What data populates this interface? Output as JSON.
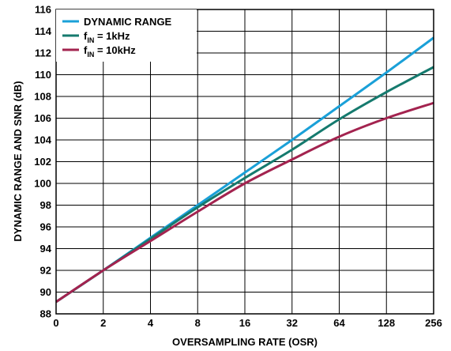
{
  "chart_data": {
    "type": "line",
    "xlabel": "OVERSAMPLING RATE (OSR)",
    "ylabel": "DYNAMIC RANGE AND SNR (dB)",
    "x_ticks": [
      "0",
      "2",
      "4",
      "8",
      "16",
      "32",
      "64",
      "128",
      "256"
    ],
    "ylim": [
      88,
      116
    ],
    "y_ticks": [
      "88",
      "90",
      "92",
      "94",
      "96",
      "98",
      "100",
      "102",
      "104",
      "106",
      "108",
      "110",
      "112",
      "114",
      "116"
    ],
    "grid": true,
    "legend_position": "top-left",
    "x_scale": "log2 (labeled ticks equally spaced)",
    "series": [
      {
        "name_main": "DYNAMIC RANGE",
        "name_sub": "",
        "name_tail": "",
        "color": "#1aa0d8",
        "points": [
          [
            "0",
            89.1
          ],
          [
            "2",
            92.0
          ],
          [
            "4",
            95.0
          ],
          [
            "8",
            98.0
          ],
          [
            "16",
            101.0
          ],
          [
            "32",
            104.0
          ],
          [
            "64",
            107.1
          ],
          [
            "128",
            110.2
          ],
          [
            "256",
            113.4
          ]
        ]
      },
      {
        "name_main": "f",
        "name_sub": "IN",
        "name_tail": " = 1kHz",
        "color": "#157a6e",
        "points": [
          [
            "0",
            89.1
          ],
          [
            "2",
            92.0
          ],
          [
            "4",
            94.9
          ],
          [
            "8",
            97.8
          ],
          [
            "16",
            100.5
          ],
          [
            "32",
            103.1
          ],
          [
            "64",
            105.9
          ],
          [
            "128",
            108.4
          ],
          [
            "256",
            110.7
          ]
        ]
      },
      {
        "name_main": "f",
        "name_sub": "IN",
        "name_tail": " = 10kHz",
        "color": "#a3234f",
        "points": [
          [
            "0",
            89.1
          ],
          [
            "2",
            92.0
          ],
          [
            "4",
            94.7
          ],
          [
            "8",
            97.4
          ],
          [
            "16",
            100.0
          ],
          [
            "32",
            102.2
          ],
          [
            "64",
            104.3
          ],
          [
            "128",
            106.0
          ],
          [
            "256",
            107.4
          ]
        ]
      }
    ]
  }
}
